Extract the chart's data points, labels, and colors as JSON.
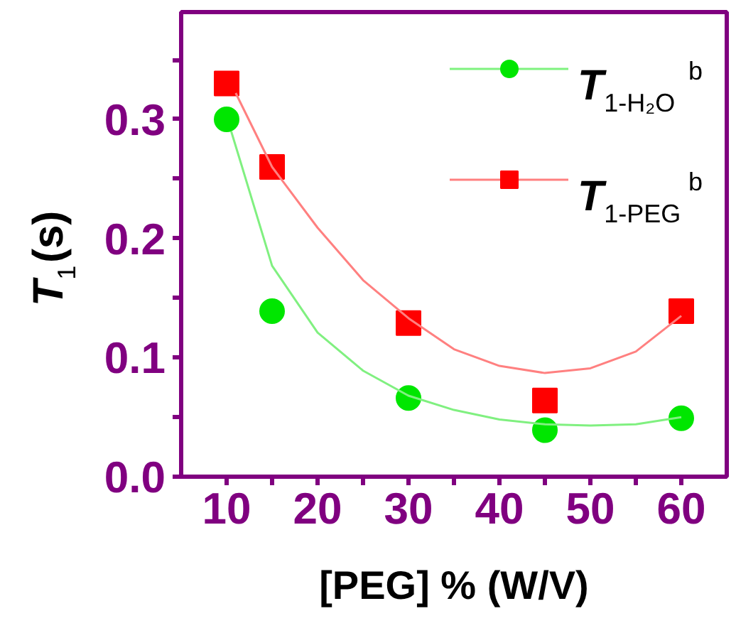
{
  "chart_data": {
    "type": "scatter",
    "xlabel": "[PEG] % (W/V)",
    "ylabel": "T$_{1}$(s)",
    "xlim": [
      5,
      65
    ],
    "ylim": [
      0,
      0.39
    ],
    "xticks": [
      10,
      {
        "value": 15,
        "label": null
      },
      20,
      {
        "value": 25,
        "label": null
      },
      30,
      {
        "value": 35,
        "label": null
      },
      40,
      {
        "value": 45,
        "label": null
      },
      50,
      {
        "value": 55,
        "label": null
      },
      60
    ],
    "yticks": [
      {
        "value": 0,
        "label": "0.0"
      },
      {
        "value": 0.05,
        "label": null
      },
      0.1,
      {
        "value": 0.15,
        "label": null
      },
      0.2,
      {
        "value": 0.25,
        "label": null
      },
      0.3,
      {
        "value": 0.35,
        "label": null
      }
    ],
    "x": [
      10,
      15,
      30,
      45,
      60
    ],
    "series": [
      {
        "name": "T$_{1-H₂O}$$^{b}$",
        "color": "#00e600",
        "marker": "circle",
        "values": [
          0.3,
          0.139,
          0.066,
          0.039,
          0.049
        ]
      },
      {
        "name": "T$_{1-PEG}$$^{b}$",
        "color": "#ff0000",
        "marker": "square",
        "values": [
          0.33,
          0.26,
          0.129,
          0.064,
          0.139
        ]
      },
      {
        "type": "line",
        "color": "#80f080",
        "x": [
          10.5,
          11.7,
          15,
          20,
          25,
          30,
          35,
          40,
          45,
          50,
          55,
          60
        ],
        "values": [
          0.29,
          0.26,
          0.177,
          0.121,
          0.089,
          0.068,
          0.056,
          0.048,
          0.044,
          0.043,
          0.044,
          0.05
        ]
      },
      {
        "type": "line",
        "color": "#ff8080",
        "x": [
          11,
          15,
          20,
          25,
          30,
          35,
          40,
          45,
          50,
          55,
          60
        ],
        "values": [
          0.322,
          0.26,
          0.209,
          0.165,
          0.133,
          0.107,
          0.093,
          0.087,
          0.091,
          0.105,
          0.135
        ]
      }
    ],
    "legend": "top right",
    "grid": false
  }
}
